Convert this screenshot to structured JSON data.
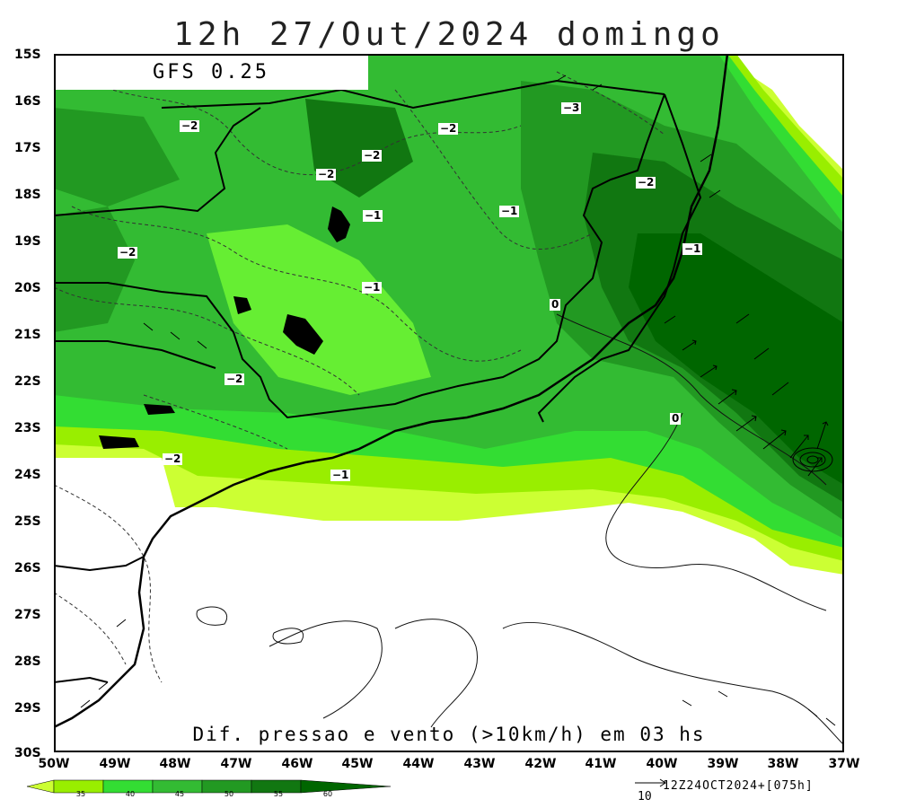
{
  "title": "12h 27/Out/2024 domingo",
  "model": "GFS 0.25",
  "subtitle": "Dif. pressao e vento (>10km/h) em 03 hs",
  "run_info": "12Z24OCT2024+[075h]",
  "reference_vector": "10",
  "lat_labels": [
    "15S",
    "16S",
    "17S",
    "18S",
    "19S",
    "20S",
    "21S",
    "22S",
    "23S",
    "24S",
    "25S",
    "26S",
    "27S",
    "28S",
    "29S",
    "30S"
  ],
  "lon_labels": [
    "50W",
    "49W",
    "48W",
    "47W",
    "46W",
    "45W",
    "44W",
    "43W",
    "42W",
    "41W",
    "40W",
    "39W",
    "38W",
    "37W"
  ],
  "colorbar": {
    "labels": [
      "35",
      "40",
      "45",
      "50",
      "55",
      "60"
    ],
    "colors": [
      "#ccff33",
      "#99ee00",
      "#33dd33",
      "#33bb33",
      "#229922",
      "#117711",
      "#006600"
    ]
  },
  "contour_labels": [
    {
      "text": "−2"
    },
    {
      "text": "−2"
    },
    {
      "text": "−2"
    },
    {
      "text": "−2"
    },
    {
      "text": "−3"
    },
    {
      "text": "−2"
    },
    {
      "text": "−1"
    },
    {
      "text": "−1"
    },
    {
      "text": "−2"
    },
    {
      "text": "−1"
    },
    {
      "text": "−1"
    },
    {
      "text": "0"
    },
    {
      "text": "−2"
    },
    {
      "text": "0"
    },
    {
      "text": "−2"
    },
    {
      "text": "−1"
    }
  ]
}
